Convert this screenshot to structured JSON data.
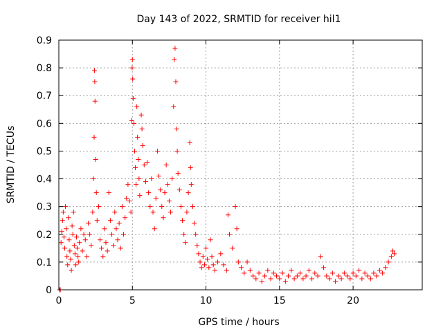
{
  "chart_data": {
    "type": "scatter",
    "title": "Day 143 of 2022, SRMTID for receiver hil1",
    "xlabel": "GPS time / hours",
    "ylabel": "SRMTID / TECUs",
    "xlim": [
      0,
      24.7
    ],
    "ylim": [
      0,
      0.9
    ],
    "xticks": [
      0,
      5,
      10,
      15,
      20
    ],
    "xtick_labels": [
      "0",
      "5",
      "10",
      "15",
      "20"
    ],
    "yticks": [
      0,
      0.1,
      0.2,
      0.3,
      0.4,
      0.5,
      0.6,
      0.7,
      0.8,
      0.9
    ],
    "ytick_labels": [
      "0",
      "0.1",
      "0.2",
      "0.3",
      "0.4",
      "0.5",
      "0.6",
      "0.7",
      "0.8",
      "0.9"
    ],
    "grid": true,
    "marker": "+",
    "color": "#ff0000",
    "series": [
      {
        "name": "SRMTID",
        "points": [
          [
            0.05,
            0.0
          ],
          [
            0.1,
            0.0
          ],
          [
            0.15,
            0.17
          ],
          [
            0.2,
            0.21
          ],
          [
            0.25,
            0.25
          ],
          [
            0.3,
            0.28
          ],
          [
            0.35,
            0.19
          ],
          [
            0.4,
            0.15
          ],
          [
            0.45,
            0.3
          ],
          [
            0.5,
            0.22
          ],
          [
            0.55,
            0.12
          ],
          [
            0.6,
            0.09
          ],
          [
            0.65,
            0.26
          ],
          [
            0.7,
            0.18
          ],
          [
            0.75,
            0.14
          ],
          [
            0.8,
            0.11
          ],
          [
            0.85,
            0.07
          ],
          [
            0.9,
            0.23
          ],
          [
            0.95,
            0.2
          ],
          [
            1.0,
            0.28
          ],
          [
            1.05,
            0.16
          ],
          [
            1.1,
            0.13
          ],
          [
            1.15,
            0.09
          ],
          [
            1.2,
            0.19
          ],
          [
            1.25,
            0.15
          ],
          [
            1.3,
            0.12
          ],
          [
            1.35,
            0.1
          ],
          [
            1.4,
            0.17
          ],
          [
            1.5,
            0.22
          ],
          [
            1.6,
            0.14
          ],
          [
            1.7,
            0.2
          ],
          [
            1.8,
            0.18
          ],
          [
            1.9,
            0.12
          ],
          [
            2.0,
            0.24
          ],
          [
            2.1,
            0.2
          ],
          [
            2.2,
            0.16
          ],
          [
            2.3,
            0.28
          ],
          [
            2.35,
            0.4
          ],
          [
            2.4,
            0.55
          ],
          [
            2.42,
            0.79
          ],
          [
            2.44,
            0.75
          ],
          [
            2.46,
            0.68
          ],
          [
            2.5,
            0.47
          ],
          [
            2.55,
            0.35
          ],
          [
            2.6,
            0.25
          ],
          [
            2.7,
            0.3
          ],
          [
            2.8,
            0.18
          ],
          [
            2.9,
            0.15
          ],
          [
            3.0,
            0.12
          ],
          [
            3.1,
            0.22
          ],
          [
            3.2,
            0.17
          ],
          [
            3.3,
            0.14
          ],
          [
            3.4,
            0.35
          ],
          [
            3.5,
            0.25
          ],
          [
            3.6,
            0.2
          ],
          [
            3.7,
            0.16
          ],
          [
            3.8,
            0.28
          ],
          [
            3.9,
            0.22
          ],
          [
            4.0,
            0.18
          ],
          [
            4.1,
            0.24
          ],
          [
            4.2,
            0.15
          ],
          [
            4.3,
            0.3
          ],
          [
            4.4,
            0.2
          ],
          [
            4.5,
            0.26
          ],
          [
            4.6,
            0.33
          ],
          [
            4.7,
            0.38
          ],
          [
            4.8,
            0.32
          ],
          [
            4.9,
            0.28
          ],
          [
            4.95,
            0.61
          ],
          [
            4.98,
            0.8
          ],
          [
            5.0,
            0.83
          ],
          [
            5.02,
            0.76
          ],
          [
            5.05,
            0.69
          ],
          [
            5.1,
            0.6
          ],
          [
            5.15,
            0.5
          ],
          [
            5.2,
            0.44
          ],
          [
            5.25,
            0.38
          ],
          [
            5.3,
            0.66
          ],
          [
            5.35,
            0.55
          ],
          [
            5.4,
            0.47
          ],
          [
            5.45,
            0.4
          ],
          [
            5.5,
            0.34
          ],
          [
            5.6,
            0.63
          ],
          [
            5.65,
            0.58
          ],
          [
            5.7,
            0.52
          ],
          [
            5.8,
            0.45
          ],
          [
            5.9,
            0.39
          ],
          [
            6.0,
            0.46
          ],
          [
            6.1,
            0.35
          ],
          [
            6.2,
            0.3
          ],
          [
            6.3,
            0.4
          ],
          [
            6.4,
            0.28
          ],
          [
            6.5,
            0.22
          ],
          [
            6.6,
            0.33
          ],
          [
            6.7,
            0.5
          ],
          [
            6.8,
            0.41
          ],
          [
            6.9,
            0.36
          ],
          [
            7.0,
            0.3
          ],
          [
            7.1,
            0.26
          ],
          [
            7.2,
            0.35
          ],
          [
            7.3,
            0.45
          ],
          [
            7.4,
            0.38
          ],
          [
            7.5,
            0.32
          ],
          [
            7.6,
            0.28
          ],
          [
            7.7,
            0.4
          ],
          [
            7.8,
            0.66
          ],
          [
            7.85,
            0.83
          ],
          [
            7.9,
            0.87
          ],
          [
            7.95,
            0.75
          ],
          [
            8.0,
            0.58
          ],
          [
            8.05,
            0.5
          ],
          [
            8.1,
            0.42
          ],
          [
            8.2,
            0.36
          ],
          [
            8.3,
            0.3
          ],
          [
            8.4,
            0.25
          ],
          [
            8.5,
            0.2
          ],
          [
            8.6,
            0.17
          ],
          [
            8.7,
            0.28
          ],
          [
            8.8,
            0.35
          ],
          [
            8.9,
            0.53
          ],
          [
            8.95,
            0.44
          ],
          [
            9.0,
            0.38
          ],
          [
            9.1,
            0.3
          ],
          [
            9.2,
            0.24
          ],
          [
            9.3,
            0.2
          ],
          [
            9.4,
            0.16
          ],
          [
            9.5,
            0.13
          ],
          [
            9.6,
            0.1
          ],
          [
            9.7,
            0.08
          ],
          [
            9.8,
            0.12
          ],
          [
            9.9,
            0.09
          ],
          [
            10.0,
            0.15
          ],
          [
            10.1,
            0.11
          ],
          [
            10.2,
            0.08
          ],
          [
            10.3,
            0.18
          ],
          [
            10.4,
            0.12
          ],
          [
            10.5,
            0.09
          ],
          [
            10.6,
            0.07
          ],
          [
            10.8,
            0.1
          ],
          [
            11.0,
            0.13
          ],
          [
            11.2,
            0.09
          ],
          [
            11.4,
            0.07
          ],
          [
            11.5,
            0.27
          ],
          [
            11.6,
            0.2
          ],
          [
            11.8,
            0.15
          ],
          [
            12.0,
            0.3
          ],
          [
            12.1,
            0.22
          ],
          [
            12.2,
            0.1
          ],
          [
            12.4,
            0.08
          ],
          [
            12.6,
            0.06
          ],
          [
            12.8,
            0.1
          ],
          [
            13.0,
            0.07
          ],
          [
            13.2,
            0.05
          ],
          [
            13.4,
            0.04
          ],
          [
            13.6,
            0.06
          ],
          [
            13.8,
            0.03
          ],
          [
            14.0,
            0.05
          ],
          [
            14.2,
            0.07
          ],
          [
            14.4,
            0.04
          ],
          [
            14.6,
            0.06
          ],
          [
            14.8,
            0.05
          ],
          [
            15.0,
            0.04
          ],
          [
            15.2,
            0.06
          ],
          [
            15.4,
            0.03
          ],
          [
            15.6,
            0.05
          ],
          [
            15.8,
            0.07
          ],
          [
            16.0,
            0.04
          ],
          [
            16.2,
            0.05
          ],
          [
            16.4,
            0.06
          ],
          [
            16.6,
            0.04
          ],
          [
            16.8,
            0.05
          ],
          [
            17.0,
            0.07
          ],
          [
            17.2,
            0.04
          ],
          [
            17.4,
            0.06
          ],
          [
            17.6,
            0.05
          ],
          [
            17.8,
            0.12
          ],
          [
            18.0,
            0.08
          ],
          [
            18.2,
            0.05
          ],
          [
            18.4,
            0.04
          ],
          [
            18.6,
            0.06
          ],
          [
            18.8,
            0.03
          ],
          [
            19.0,
            0.05
          ],
          [
            19.2,
            0.04
          ],
          [
            19.4,
            0.06
          ],
          [
            19.6,
            0.05
          ],
          [
            19.8,
            0.04
          ],
          [
            20.0,
            0.06
          ],
          [
            20.2,
            0.05
          ],
          [
            20.4,
            0.07
          ],
          [
            20.6,
            0.04
          ],
          [
            20.8,
            0.06
          ],
          [
            21.0,
            0.05
          ],
          [
            21.2,
            0.04
          ],
          [
            21.4,
            0.06
          ],
          [
            21.6,
            0.05
          ],
          [
            21.8,
            0.07
          ],
          [
            22.0,
            0.06
          ],
          [
            22.2,
            0.08
          ],
          [
            22.4,
            0.1
          ],
          [
            22.6,
            0.12
          ],
          [
            22.7,
            0.14
          ],
          [
            22.8,
            0.13
          ]
        ]
      }
    ]
  }
}
